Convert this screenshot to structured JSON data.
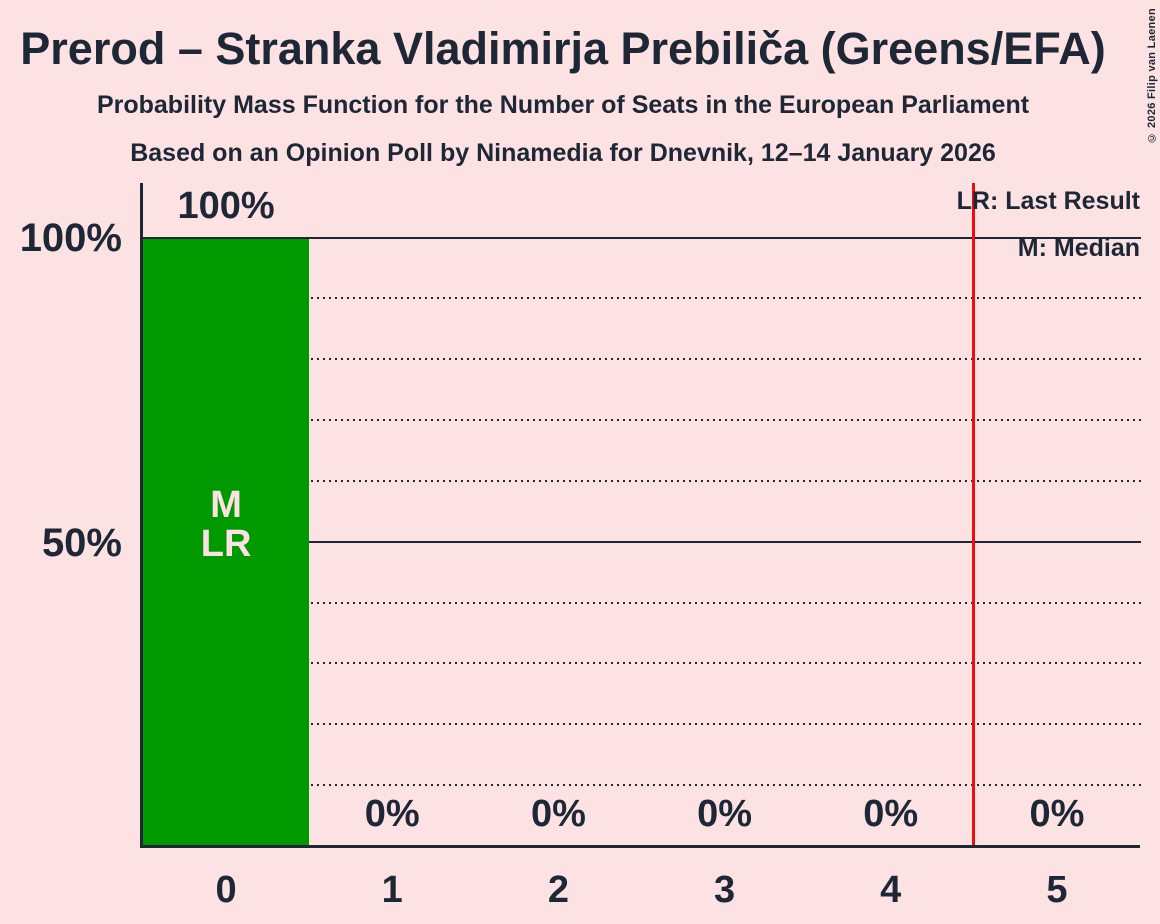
{
  "title": "Prerod – Stranka Vladimirja Prebiliča (Greens/EFA)",
  "subtitle1": "Probability Mass Function for the Number of Seats in the European Parliament",
  "subtitle2": "Based on an Opinion Poll by Ninamedia for Dnevnik, 12–14 January 2026",
  "copyright": "© 2026 Filip van Laenen",
  "legend": {
    "lr": "LR: Last Result",
    "m": "M: Median"
  },
  "y_axis": {
    "labels": [
      "100%",
      "50%"
    ]
  },
  "annotations": {
    "median": "M",
    "last_result": "LR"
  },
  "colors": {
    "background": "#fce2e2",
    "text": "#1d2735",
    "bar": "#009900",
    "red_line": "#f20d0d"
  },
  "chart_data": {
    "type": "bar",
    "title": "Prerod – Stranka Vladimirja Prebiliča (Greens/EFA)",
    "categories": [
      "0",
      "1",
      "2",
      "3",
      "4",
      "5"
    ],
    "values": [
      100,
      0,
      0,
      0,
      0,
      0
    ],
    "value_labels": [
      "100%",
      "0%",
      "0%",
      "0%",
      "0%",
      "0%"
    ],
    "ylim": [
      0,
      100
    ],
    "ytick_values": [
      100,
      50
    ],
    "ytick_labels": [
      "100%",
      "50%"
    ],
    "solid_gridlines": [
      100,
      50
    ],
    "dotted_gridlines": [
      90,
      80,
      70,
      60,
      40,
      30,
      20,
      10
    ],
    "median_seat_index": 0,
    "last_result_seat_index": 0,
    "red_line_x": 4.5,
    "grid": "on",
    "legend_position": "top-right"
  }
}
